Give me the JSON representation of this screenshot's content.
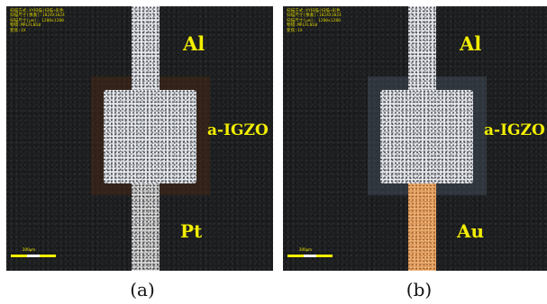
{
  "panels": [
    {
      "id": "a",
      "meta_lines": [
        "扫描方式:XY扫描(扫描+彩色",
        "扫描尺寸[像素]:1024X1024",
        "扫描尺寸[μm]: 1280x1280",
        "物镜:MPLFLN10",
        "变焦:1X"
      ],
      "label_top": "Al",
      "label_igzo": "a-IGZO",
      "label_bottom": "Pt",
      "scale_text": "200μm",
      "caption": "(a)",
      "bottom_electrode_color": "#c4c2c0"
    },
    {
      "id": "b",
      "meta_lines": [
        "扫描方式:XY扫描(扫描+彩色",
        "扫描尺寸[像素]:1024X1024",
        "扫描尺寸[μm]: 1280x1280",
        "物镜:MPLFLN10",
        "变焦:1X"
      ],
      "label_top": "Al",
      "label_igzo": "a-IGZO",
      "label_bottom": "Au",
      "scale_text": "200μm",
      "caption": "(b)",
      "bottom_electrode_color": "#e2a060"
    }
  ],
  "colors": {
    "label": "#f2ee00",
    "metadata_text": "#d8d000",
    "background": "#1c1d1f",
    "al_electrode": "#d9dbe0"
  }
}
